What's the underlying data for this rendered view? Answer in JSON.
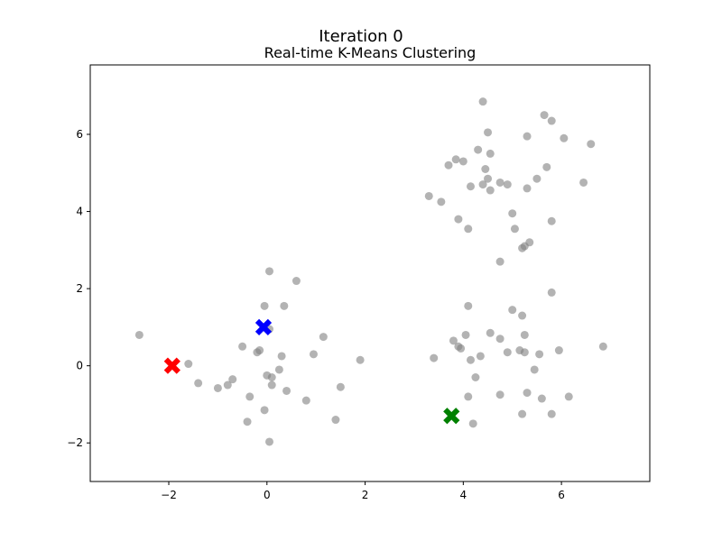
{
  "header": {
    "title": "Iteration 0",
    "subtitle": "Real-time K-Means Clustering"
  },
  "chart_data": {
    "type": "scatter",
    "title": "Real-time K-Means Clustering",
    "xlabel": "",
    "ylabel": "",
    "xlim": [
      -3.6,
      7.8
    ],
    "ylim": [
      -3.0,
      7.8
    ],
    "xticks": [
      -2,
      0,
      2,
      4,
      6
    ],
    "yticks": [
      -2,
      0,
      2,
      4,
      6
    ],
    "xtick_labels": [
      "−2",
      "0",
      "2",
      "4",
      "6"
    ],
    "ytick_labels": [
      "−2",
      "0",
      "2",
      "4",
      "6"
    ],
    "grid": false,
    "series": [
      {
        "color": "#808080",
        "points": [
          [
            -2.6,
            0.8
          ],
          [
            -1.6,
            0.05
          ],
          [
            -1.4,
            -0.45
          ],
          [
            -1.0,
            -0.58
          ],
          [
            -0.8,
            -0.5
          ],
          [
            -0.7,
            -0.35
          ],
          [
            -0.5,
            0.5
          ],
          [
            -0.35,
            -0.8
          ],
          [
            -0.4,
            -1.45
          ],
          [
            -0.2,
            0.35
          ],
          [
            -0.15,
            0.4
          ],
          [
            -0.05,
            -1.15
          ],
          [
            0.0,
            -0.25
          ],
          [
            0.05,
            0.95
          ],
          [
            0.1,
            -0.3
          ],
          [
            0.1,
            -0.5
          ],
          [
            0.05,
            -1.97
          ],
          [
            0.05,
            2.45
          ],
          [
            -0.05,
            1.55
          ],
          [
            0.25,
            -0.1
          ],
          [
            0.3,
            0.25
          ],
          [
            0.35,
            1.55
          ],
          [
            0.4,
            -0.65
          ],
          [
            0.6,
            2.2
          ],
          [
            0.8,
            -0.9
          ],
          [
            0.95,
            0.3
          ],
          [
            1.15,
            0.75
          ],
          [
            1.4,
            -1.4
          ],
          [
            1.5,
            -0.55
          ],
          [
            1.9,
            0.15
          ],
          [
            3.3,
            4.4
          ],
          [
            3.55,
            4.25
          ],
          [
            3.7,
            5.2
          ],
          [
            3.85,
            5.35
          ],
          [
            3.9,
            3.8
          ],
          [
            4.0,
            5.3
          ],
          [
            4.1,
            3.55
          ],
          [
            4.15,
            4.65
          ],
          [
            4.3,
            5.6
          ],
          [
            4.4,
            4.7
          ],
          [
            4.4,
            6.85
          ],
          [
            4.45,
            5.1
          ],
          [
            4.5,
            4.85
          ],
          [
            4.5,
            6.05
          ],
          [
            4.55,
            5.5
          ],
          [
            4.55,
            4.55
          ],
          [
            4.75,
            4.75
          ],
          [
            4.75,
            2.7
          ],
          [
            4.9,
            4.7
          ],
          [
            5.0,
            3.95
          ],
          [
            5.05,
            3.55
          ],
          [
            5.2,
            3.05
          ],
          [
            5.25,
            3.1
          ],
          [
            5.3,
            5.95
          ],
          [
            5.3,
            4.6
          ],
          [
            5.35,
            3.2
          ],
          [
            5.5,
            4.85
          ],
          [
            5.65,
            6.5
          ],
          [
            5.7,
            5.15
          ],
          [
            5.8,
            6.35
          ],
          [
            5.8,
            3.75
          ],
          [
            6.05,
            5.9
          ],
          [
            6.45,
            4.75
          ],
          [
            6.6,
            5.75
          ],
          [
            3.4,
            0.2
          ],
          [
            3.8,
            0.65
          ],
          [
            3.9,
            0.5
          ],
          [
            3.95,
            0.45
          ],
          [
            4.05,
            0.8
          ],
          [
            4.1,
            1.55
          ],
          [
            4.1,
            -0.8
          ],
          [
            4.15,
            0.15
          ],
          [
            4.2,
            -1.5
          ],
          [
            4.25,
            -0.3
          ],
          [
            4.35,
            0.25
          ],
          [
            4.55,
            0.85
          ],
          [
            4.75,
            0.7
          ],
          [
            4.75,
            -0.75
          ],
          [
            4.9,
            0.35
          ],
          [
            5.0,
            1.45
          ],
          [
            5.15,
            0.4
          ],
          [
            5.2,
            1.3
          ],
          [
            5.2,
            -1.25
          ],
          [
            5.25,
            0.8
          ],
          [
            5.25,
            0.35
          ],
          [
            5.3,
            -0.7
          ],
          [
            5.45,
            -0.1
          ],
          [
            5.55,
            0.3
          ],
          [
            5.6,
            -0.85
          ],
          [
            5.8,
            1.9
          ],
          [
            5.8,
            -1.25
          ],
          [
            5.95,
            0.4
          ],
          [
            6.15,
            -0.8
          ],
          [
            6.85,
            0.5
          ]
        ]
      }
    ],
    "centroids": [
      {
        "color": "#ff0000",
        "x": -1.93,
        "y": 0.0
      },
      {
        "color": "#0000ff",
        "x": -0.07,
        "y": 1.0
      },
      {
        "color": "#008000",
        "x": 3.76,
        "y": -1.3
      }
    ]
  }
}
